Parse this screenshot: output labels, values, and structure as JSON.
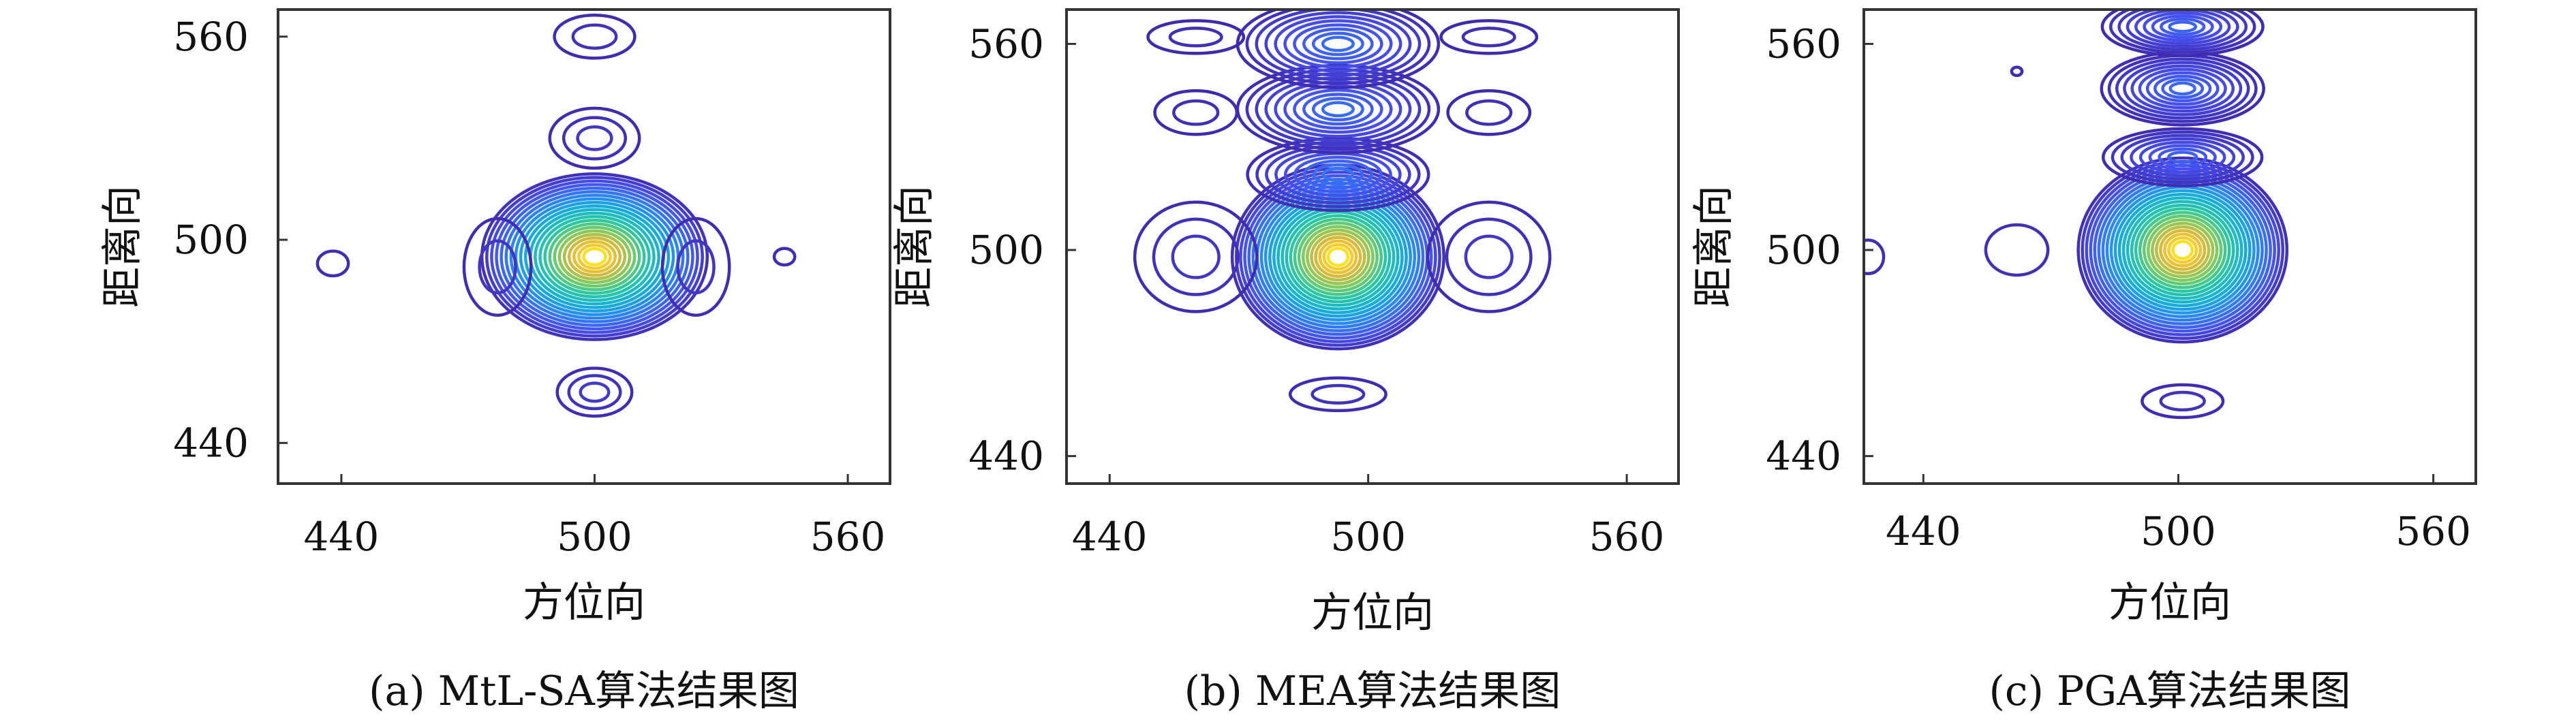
{
  "chart_data": [
    {
      "type": "contour",
      "caption": "(a) MtL-SA算法结果图",
      "xlabel": "方位向",
      "ylabel": "距离向",
      "xlim": [
        425,
        570
      ],
      "ylim": [
        428,
        568
      ],
      "xticks": [
        440,
        500,
        560
      ],
      "yticks": [
        440,
        500,
        560
      ],
      "colormap": "parula",
      "peaks": [
        {
          "x": 500,
          "y": 495,
          "sx": 12,
          "sy": 11,
          "a": 1.0,
          "levels": 22
        },
        {
          "x": 500,
          "y": 455,
          "sx": 5,
          "sy": 4,
          "a": 0.06,
          "levels": 3
        },
        {
          "x": 500,
          "y": 530,
          "sx": 6,
          "sy": 5,
          "a": 0.05,
          "levels": 3
        },
        {
          "x": 500,
          "y": 560,
          "sx": 6,
          "sy": 4,
          "a": 0.04,
          "levels": 2
        },
        {
          "x": 477,
          "y": 492,
          "sx": 5,
          "sy": 9,
          "a": 0.05,
          "levels": 2
        },
        {
          "x": 524,
          "y": 492,
          "sx": 5,
          "sy": 9,
          "a": 0.05,
          "levels": 2
        },
        {
          "x": 438,
          "y": 493,
          "sx": 3,
          "sy": 3,
          "a": 0.03,
          "levels": 1
        },
        {
          "x": 545,
          "y": 495,
          "sx": 2,
          "sy": 2,
          "a": 0.03,
          "levels": 1
        }
      ]
    },
    {
      "type": "contour",
      "caption": "(b) MEA算法结果图",
      "xlabel": "方位向",
      "ylabel": "距离向",
      "xlim": [
        430,
        572
      ],
      "ylim": [
        432,
        570
      ],
      "xticks": [
        440,
        500,
        560
      ],
      "yticks": [
        440,
        500,
        560
      ],
      "colormap": "parula",
      "peaks": [
        {
          "x": 493,
          "y": 498,
          "sx": 11,
          "sy": 12,
          "a": 1.0,
          "levels": 24
        },
        {
          "x": 493,
          "y": 522,
          "sx": 10,
          "sy": 5,
          "a": 0.18,
          "levels": 9
        },
        {
          "x": 493,
          "y": 541,
          "sx": 11,
          "sy": 6,
          "a": 0.16,
          "levels": 10
        },
        {
          "x": 493,
          "y": 560,
          "sx": 11,
          "sy": 6,
          "a": 0.16,
          "levels": 10
        },
        {
          "x": 493,
          "y": 458,
          "sx": 7,
          "sy": 3,
          "a": 0.04,
          "levels": 2
        },
        {
          "x": 460,
          "y": 498,
          "sx": 8,
          "sy": 9,
          "a": 0.05,
          "levels": 3
        },
        {
          "x": 528,
          "y": 498,
          "sx": 8,
          "sy": 9,
          "a": 0.05,
          "levels": 3
        },
        {
          "x": 460,
          "y": 540,
          "sx": 6,
          "sy": 4,
          "a": 0.03,
          "levels": 2
        },
        {
          "x": 528,
          "y": 540,
          "sx": 6,
          "sy": 4,
          "a": 0.03,
          "levels": 2
        },
        {
          "x": 460,
          "y": 562,
          "sx": 7,
          "sy": 3,
          "a": 0.03,
          "levels": 2
        },
        {
          "x": 528,
          "y": 562,
          "sx": 7,
          "sy": 3,
          "a": 0.03,
          "levels": 2
        }
      ]
    },
    {
      "type": "contour",
      "caption": "(c) PGA算法结果图",
      "xlabel": "方位向",
      "ylabel": "距离向",
      "xlim": [
        426,
        570
      ],
      "ylim": [
        432,
        570
      ],
      "xticks": [
        440,
        500,
        560
      ],
      "yticks": [
        440,
        500,
        560
      ],
      "colormap": "parula",
      "peaks": [
        {
          "x": 501,
          "y": 500,
          "sx": 11,
          "sy": 12,
          "a": 1.0,
          "levels": 24
        },
        {
          "x": 501,
          "y": 527,
          "sx": 9,
          "sy": 4,
          "a": 0.14,
          "levels": 8
        },
        {
          "x": 501,
          "y": 547,
          "sx": 9,
          "sy": 5,
          "a": 0.15,
          "levels": 10
        },
        {
          "x": 501,
          "y": 565,
          "sx": 9,
          "sy": 4,
          "a": 0.14,
          "levels": 9
        },
        {
          "x": 501,
          "y": 456,
          "sx": 6,
          "sy": 3,
          "a": 0.04,
          "levels": 2
        },
        {
          "x": 462,
          "y": 500,
          "sx": 6,
          "sy": 6,
          "a": 0.04,
          "levels": 1
        },
        {
          "x": 462,
          "y": 552,
          "sx": 1,
          "sy": 1,
          "a": 0.03,
          "levels": 1
        },
        {
          "x": 427,
          "y": 498,
          "sx": 3,
          "sy": 4,
          "a": 0.03,
          "levels": 1
        }
      ]
    }
  ]
}
